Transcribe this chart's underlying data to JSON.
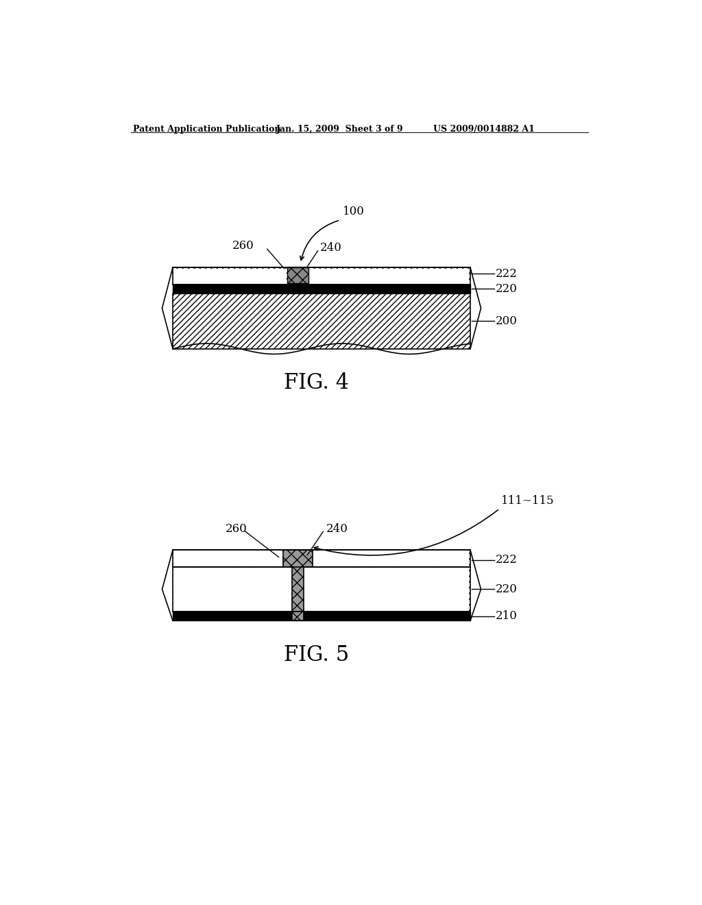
{
  "bg_color": "#ffffff",
  "header_left": "Patent Application Publication",
  "header_mid": "Jan. 15, 2009  Sheet 3 of 9",
  "header_right": "US 2009/0014882 A1",
  "fig4_label": "FIG. 4",
  "fig5_label": "FIG. 5",
  "label_100": "100",
  "label_200": "200",
  "label_210": "210",
  "label_220": "220",
  "label_222": "222",
  "label_240": "240",
  "label_260": "260",
  "label_111_115": "111~115"
}
